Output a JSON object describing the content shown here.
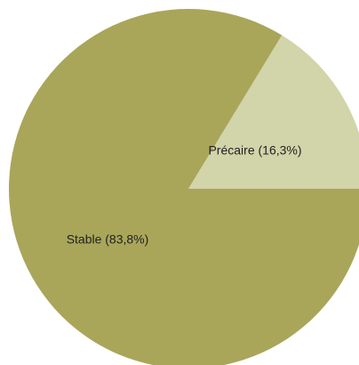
{
  "chart_data": {
    "type": "pie",
    "title": "",
    "start_angle_deg": 0,
    "direction": "counterclockwise",
    "slices": [
      {
        "label": "Précaire (16,3%)",
        "value": 16.3,
        "color": "#d2d4a9"
      },
      {
        "label": "Stable (83,8%)",
        "value": 83.8,
        "color": "#a9a65a"
      }
    ]
  }
}
